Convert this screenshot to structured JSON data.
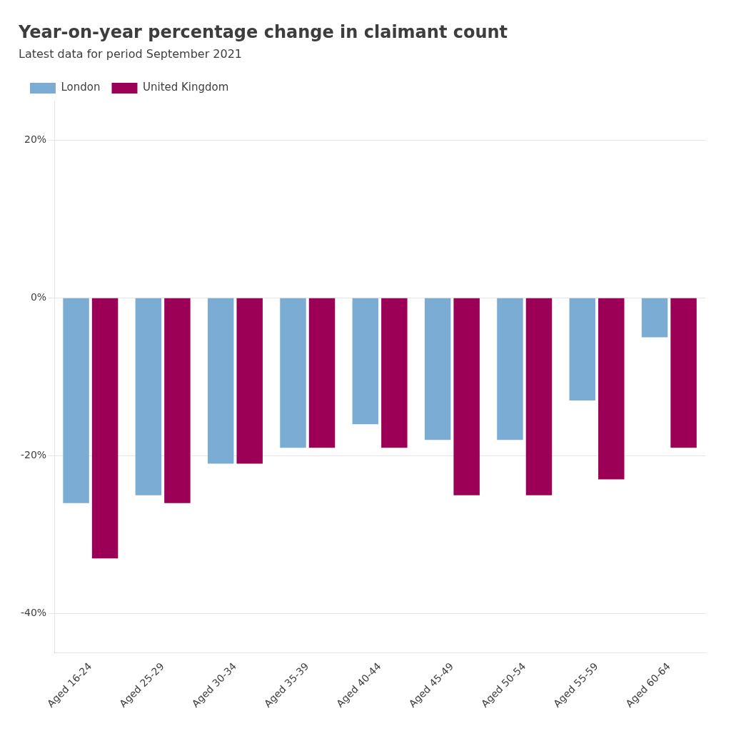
{
  "chart_data": {
    "type": "bar",
    "title": "Year-on-year percentage change in claimant count",
    "subtitle": "Latest data for period September 2021",
    "categories": [
      "Aged 16-24",
      "Aged 25-29",
      "Aged 30-34",
      "Aged 35-39",
      "Aged 40-44",
      "Aged 45-49",
      "Aged 50-54",
      "Aged 55-59",
      "Aged 60-64"
    ],
    "series": [
      {
        "name": "London",
        "color": "#7badd4",
        "values": [
          -26,
          -25,
          -21,
          -19,
          -16,
          -18,
          -18,
          -13,
          -5
        ]
      },
      {
        "name": "United Kingdom",
        "color": "#9b0056",
        "values": [
          -33,
          -26,
          -21,
          -19,
          -19,
          -25,
          -25,
          -23,
          -19
        ]
      }
    ],
    "ylim": [
      -45,
      25
    ],
    "yticks": [
      {
        "value": 20,
        "label": "20%"
      },
      {
        "value": 0,
        "label": "0%"
      },
      {
        "value": -20,
        "label": "-20%"
      },
      {
        "value": -40,
        "label": "-40%"
      }
    ],
    "grid": true,
    "legend": "top"
  }
}
